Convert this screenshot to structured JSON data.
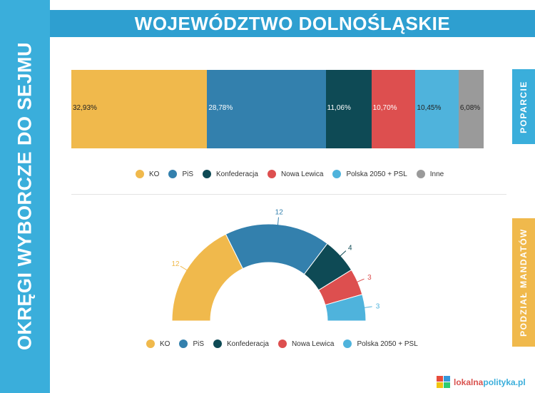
{
  "sidebar": {
    "title": "OKRĘGI WYBORCZE DO SEJMU"
  },
  "header": {
    "title": "WOJEWÓDZTWO DOLNOŚLĄSKIE"
  },
  "tabs": {
    "support": "POPARCIE",
    "seats": "PODZIAŁ MANDATÓW"
  },
  "colors": {
    "KO": "#f0b94c",
    "PiS": "#3380ad",
    "Konfederacja": "#0e4a55",
    "Nowa Lewica": "#dd4f4f",
    "Polska 2050 + PSL": "#4fb3dc",
    "Inne": "#9a9a9a",
    "accent": "#3aaedb"
  },
  "chart_data": [
    {
      "type": "bar",
      "stacked": true,
      "orientation": "horizontal",
      "categories": [
        "KO",
        "PiS",
        "Konfederacja",
        "Nowa Lewica",
        "Polska 2050 + PSL",
        "Inne"
      ],
      "values": [
        32.93,
        28.78,
        11.06,
        10.7,
        10.45,
        6.08
      ],
      "data_labels": [
        "32,93%",
        "28,78%",
        "11,06%",
        "10,70%",
        "10,45%",
        "6,08%"
      ],
      "legend": [
        "KO",
        "PiS",
        "Konfederacja",
        "Nowa Lewica",
        "Polska 2050 + PSL",
        "Inne"
      ],
      "legend_position": "bottom"
    },
    {
      "type": "pie",
      "variant": "semicircle-donut",
      "categories": [
        "KO",
        "PiS",
        "Konfederacja",
        "Nowa Lewica",
        "Polska 2050 + PSL"
      ],
      "values": [
        12,
        12,
        4,
        3,
        3
      ],
      "data_labels": [
        "12",
        "12",
        "4",
        "3",
        "3"
      ],
      "legend": [
        "KO",
        "PiS",
        "Konfederacja",
        "Nowa Lewica",
        "Polska 2050 + PSL"
      ],
      "legend_position": "bottom"
    }
  ],
  "footer": {
    "logo_part1": "lokalna",
    "logo_part2": "polityka.pl"
  }
}
